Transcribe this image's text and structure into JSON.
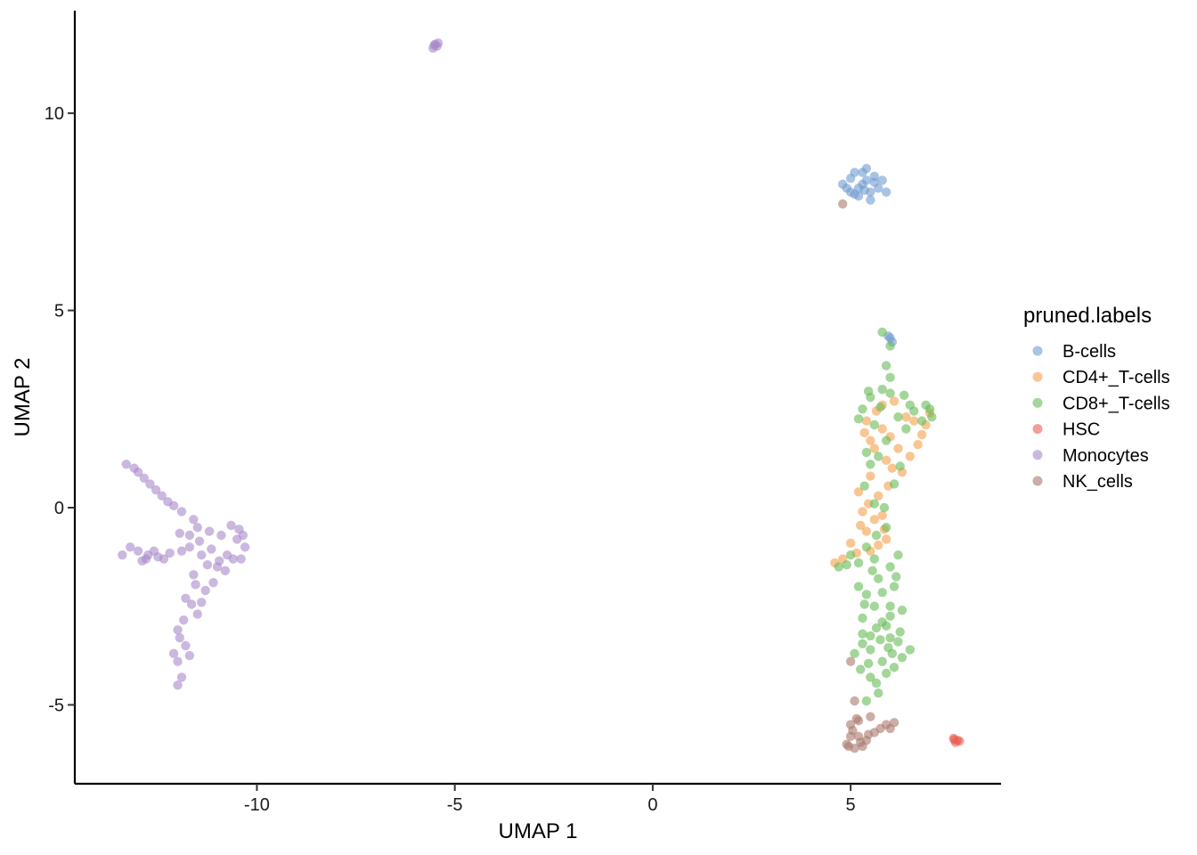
{
  "chart_data": {
    "type": "scatter",
    "title": "",
    "xlabel": "UMAP 1",
    "ylabel": "UMAP 2",
    "xlim": [
      -14.6,
      8.8
    ],
    "ylim": [
      -7.0,
      12.6
    ],
    "xticks": [
      -10,
      -5,
      0,
      5
    ],
    "yticks": [
      -5,
      0,
      5,
      10
    ],
    "xtick_labels": [
      "-10",
      "-5",
      "0",
      "5"
    ],
    "ytick_labels": [
      "-5",
      "0",
      "5",
      "10"
    ],
    "grid": false,
    "legend": {
      "title": "pruned.labels",
      "placement": "right"
    },
    "point_opacity": 0.6,
    "series": [
      {
        "name": "B-cells",
        "color": "#6f9bd1",
        "points": [
          [
            5.3,
            8.2
          ],
          [
            5.1,
            8.5
          ],
          [
            5.5,
            8.0
          ],
          [
            4.9,
            8.1
          ],
          [
            5.6,
            8.4
          ],
          [
            5.2,
            7.9
          ],
          [
            5.4,
            8.3
          ],
          [
            5.0,
            8.0
          ],
          [
            5.7,
            8.1
          ],
          [
            5.3,
            8.5
          ],
          [
            5.5,
            7.8
          ],
          [
            4.8,
            8.2
          ],
          [
            5.2,
            8.1
          ],
          [
            5.9,
            8.0
          ],
          [
            5.4,
            8.6
          ],
          [
            5.1,
            7.95
          ],
          [
            5.6,
            8.25
          ],
          [
            5.0,
            8.35
          ],
          [
            5.35,
            8.05
          ],
          [
            5.8,
            8.3
          ],
          [
            5.95,
            4.35
          ],
          [
            6.05,
            4.2
          ],
          [
            6.0,
            4.3
          ]
        ]
      },
      {
        "name": "CD4+_T-cells",
        "color": "#f5a04b",
        "points": [
          [
            5.4,
            2.2
          ],
          [
            5.8,
            2.6
          ],
          [
            6.4,
            2.3
          ],
          [
            5.6,
            1.5
          ],
          [
            5.9,
            1.2
          ],
          [
            5.5,
            0.8
          ],
          [
            5.7,
            0.3
          ],
          [
            5.6,
            -0.3
          ],
          [
            5.3,
            -0.1
          ],
          [
            5.4,
            -0.6
          ],
          [
            5.0,
            -0.9
          ],
          [
            4.8,
            -1.3
          ],
          [
            4.6,
            -1.4
          ],
          [
            6.0,
            1.8
          ],
          [
            5.8,
            2.0
          ],
          [
            6.7,
            1.6
          ],
          [
            6.9,
            2.1
          ],
          [
            7.0,
            2.4
          ],
          [
            6.5,
            1.3
          ],
          [
            6.3,
            0.9
          ],
          [
            5.5,
            -1.1
          ],
          [
            5.9,
            -0.8
          ],
          [
            5.2,
            0.4
          ],
          [
            5.8,
            -0.2
          ],
          [
            6.2,
            1.5
          ],
          [
            5.35,
            1.9
          ],
          [
            5.65,
            2.45
          ],
          [
            6.1,
            2.7
          ],
          [
            6.6,
            2.2
          ],
          [
            5.45,
            0.1
          ],
          [
            5.95,
            0.55
          ],
          [
            5.25,
            -0.45
          ],
          [
            5.7,
            -0.95
          ],
          [
            5.15,
            -1.15
          ],
          [
            6.05,
            1.0
          ],
          [
            5.5,
            1.7
          ],
          [
            6.8,
            1.85
          ],
          [
            5.85,
            -0.55
          ]
        ]
      },
      {
        "name": "CD8+_T-cells",
        "color": "#66bb55",
        "points": [
          [
            5.5,
            2.8
          ],
          [
            6.0,
            2.9
          ],
          [
            6.5,
            2.6
          ],
          [
            7.0,
            2.5
          ],
          [
            6.8,
            2.2
          ],
          [
            5.3,
            2.5
          ],
          [
            5.6,
            2.1
          ],
          [
            6.2,
            2.3
          ],
          [
            5.8,
            3.0
          ],
          [
            5.9,
            3.6
          ],
          [
            6.0,
            4.1
          ],
          [
            5.8,
            4.45
          ],
          [
            6.0,
            3.3
          ],
          [
            5.9,
            1.7
          ],
          [
            5.5,
            1.1
          ],
          [
            6.1,
            0.6
          ],
          [
            5.6,
            0.1
          ],
          [
            5.9,
            -0.5
          ],
          [
            5.4,
            -1.0
          ],
          [
            4.7,
            -1.5
          ],
          [
            5.2,
            -1.4
          ],
          [
            6.0,
            -1.5
          ],
          [
            5.7,
            -1.8
          ],
          [
            5.4,
            -2.2
          ],
          [
            6.1,
            -2.0
          ],
          [
            6.3,
            -2.6
          ],
          [
            5.3,
            -2.8
          ],
          [
            5.9,
            -3.0
          ],
          [
            6.2,
            -3.4
          ],
          [
            5.5,
            -3.6
          ],
          [
            5.8,
            -3.9
          ],
          [
            6.3,
            -3.8
          ],
          [
            5.5,
            -4.3
          ],
          [
            5.9,
            -4.2
          ],
          [
            5.3,
            -3.2
          ],
          [
            6.0,
            -2.5
          ],
          [
            5.1,
            -3.7
          ],
          [
            5.7,
            -4.7
          ],
          [
            6.5,
            -3.6
          ],
          [
            5.4,
            -4.9
          ],
          [
            5.6,
            -2.5
          ],
          [
            6.0,
            -3.3
          ],
          [
            5.2,
            -2.0
          ],
          [
            6.2,
            -1.2
          ],
          [
            5.6,
            -1.3
          ],
          [
            6.4,
            2.0
          ],
          [
            6.9,
            2.6
          ],
          [
            5.4,
            1.4
          ],
          [
            5.45,
            2.95
          ],
          [
            6.35,
            2.85
          ],
          [
            6.6,
            2.45
          ],
          [
            7.05,
            2.3
          ],
          [
            5.75,
            2.55
          ],
          [
            5.2,
            2.25
          ],
          [
            5.7,
            1.3
          ],
          [
            6.25,
            1.05
          ],
          [
            5.35,
            0.55
          ],
          [
            5.85,
            0.0
          ],
          [
            5.65,
            -0.7
          ],
          [
            5.0,
            -1.2
          ],
          [
            4.9,
            -1.45
          ],
          [
            5.55,
            -1.6
          ],
          [
            6.15,
            -1.75
          ],
          [
            5.8,
            -2.15
          ],
          [
            5.35,
            -2.45
          ],
          [
            6.0,
            -2.75
          ],
          [
            5.65,
            -3.05
          ],
          [
            6.25,
            -3.15
          ],
          [
            5.3,
            -3.45
          ],
          [
            5.95,
            -3.55
          ],
          [
            5.45,
            -3.95
          ],
          [
            6.1,
            -4.05
          ],
          [
            5.65,
            -4.45
          ],
          [
            5.8,
            -2.9
          ],
          [
            5.5,
            -3.25
          ],
          [
            6.05,
            -3.7
          ],
          [
            5.25,
            -4.1
          ],
          [
            5.75,
            -3.35
          ]
        ]
      },
      {
        "name": "HSC",
        "color": "#ea5f52",
        "points": [
          [
            7.6,
            -5.85
          ],
          [
            7.7,
            -5.9
          ],
          [
            7.65,
            -5.95
          ],
          [
            7.75,
            -5.92
          ],
          [
            7.62,
            -5.88
          ]
        ]
      },
      {
        "name": "Monocytes",
        "color": "#a889c9",
        "points": [
          [
            -13.3,
            1.1
          ],
          [
            -13.0,
            0.9
          ],
          [
            -12.7,
            0.6
          ],
          [
            -12.4,
            0.3
          ],
          [
            -12.1,
            0.05
          ],
          [
            -11.9,
            -0.1
          ],
          [
            -11.6,
            -0.3
          ],
          [
            -13.4,
            -1.2
          ],
          [
            -13.0,
            -1.1
          ],
          [
            -12.8,
            -1.3
          ],
          [
            -12.5,
            -1.25
          ],
          [
            -12.2,
            -1.15
          ],
          [
            -11.9,
            -1.1
          ],
          [
            -11.7,
            -0.7
          ],
          [
            -11.5,
            -0.5
          ],
          [
            -11.2,
            -0.6
          ],
          [
            -10.9,
            -0.7
          ],
          [
            -10.5,
            -0.8
          ],
          [
            -10.3,
            -1.0
          ],
          [
            -10.6,
            -1.3
          ],
          [
            -11.0,
            -1.5
          ],
          [
            -11.4,
            -1.2
          ],
          [
            -11.6,
            -1.7
          ],
          [
            -11.3,
            -2.1
          ],
          [
            -11.8,
            -2.3
          ],
          [
            -11.5,
            -2.7
          ],
          [
            -12.0,
            -3.1
          ],
          [
            -11.8,
            -3.5
          ],
          [
            -12.0,
            -3.9
          ],
          [
            -11.9,
            -4.3
          ],
          [
            -12.0,
            -4.5
          ],
          [
            -11.1,
            -1.9
          ],
          [
            -10.8,
            -1.6
          ],
          [
            -10.4,
            -1.3
          ],
          [
            -11.7,
            -1.0
          ],
          [
            -12.6,
            -1.1
          ],
          [
            -13.2,
            -1.0
          ],
          [
            -12.9,
            -1.35
          ],
          [
            -11.95,
            -0.65
          ],
          [
            -11.45,
            -0.85
          ],
          [
            -11.15,
            -1.05
          ],
          [
            -10.75,
            -1.2
          ],
          [
            -10.45,
            -0.55
          ],
          [
            -10.65,
            -0.45
          ],
          [
            -11.25,
            -1.45
          ],
          [
            -11.55,
            -1.95
          ],
          [
            -11.65,
            -2.45
          ],
          [
            -11.85,
            -2.85
          ],
          [
            -11.95,
            -3.3
          ],
          [
            -12.1,
            -3.7
          ],
          [
            -11.7,
            -3.75
          ],
          [
            -11.4,
            -2.4
          ],
          [
            -10.95,
            -1.35
          ],
          [
            -10.35,
            -0.7
          ],
          [
            -12.85,
            0.75
          ],
          [
            -12.55,
            0.45
          ],
          [
            -12.25,
            0.15
          ],
          [
            -13.1,
            1.0
          ],
          [
            -12.35,
            -1.3
          ],
          [
            -12.75,
            -1.2
          ],
          [
            -5.5,
            11.75
          ],
          [
            -5.45,
            11.7
          ],
          [
            -5.55,
            11.65
          ],
          [
            -5.42,
            11.78
          ],
          [
            -5.52,
            11.72
          ]
        ]
      },
      {
        "name": "NK_cells",
        "color": "#a8786c",
        "points": [
          [
            4.8,
            7.7
          ],
          [
            5.0,
            -5.5
          ],
          [
            5.2,
            -5.8
          ],
          [
            4.9,
            -6.0
          ],
          [
            5.1,
            -6.1
          ],
          [
            5.4,
            -5.9
          ],
          [
            5.6,
            -5.7
          ],
          [
            5.9,
            -5.5
          ],
          [
            6.0,
            -5.6
          ],
          [
            5.3,
            -6.05
          ],
          [
            5.0,
            -5.8
          ],
          [
            5.2,
            -5.4
          ],
          [
            5.5,
            -5.3
          ],
          [
            5.1,
            -4.9
          ],
          [
            5.0,
            -3.9
          ],
          [
            6.1,
            -5.45
          ],
          [
            5.05,
            -5.65
          ],
          [
            5.25,
            -5.95
          ],
          [
            5.15,
            -5.35
          ],
          [
            5.45,
            -5.75
          ],
          [
            5.75,
            -5.6
          ],
          [
            4.95,
            -6.05
          ]
        ]
      }
    ]
  }
}
